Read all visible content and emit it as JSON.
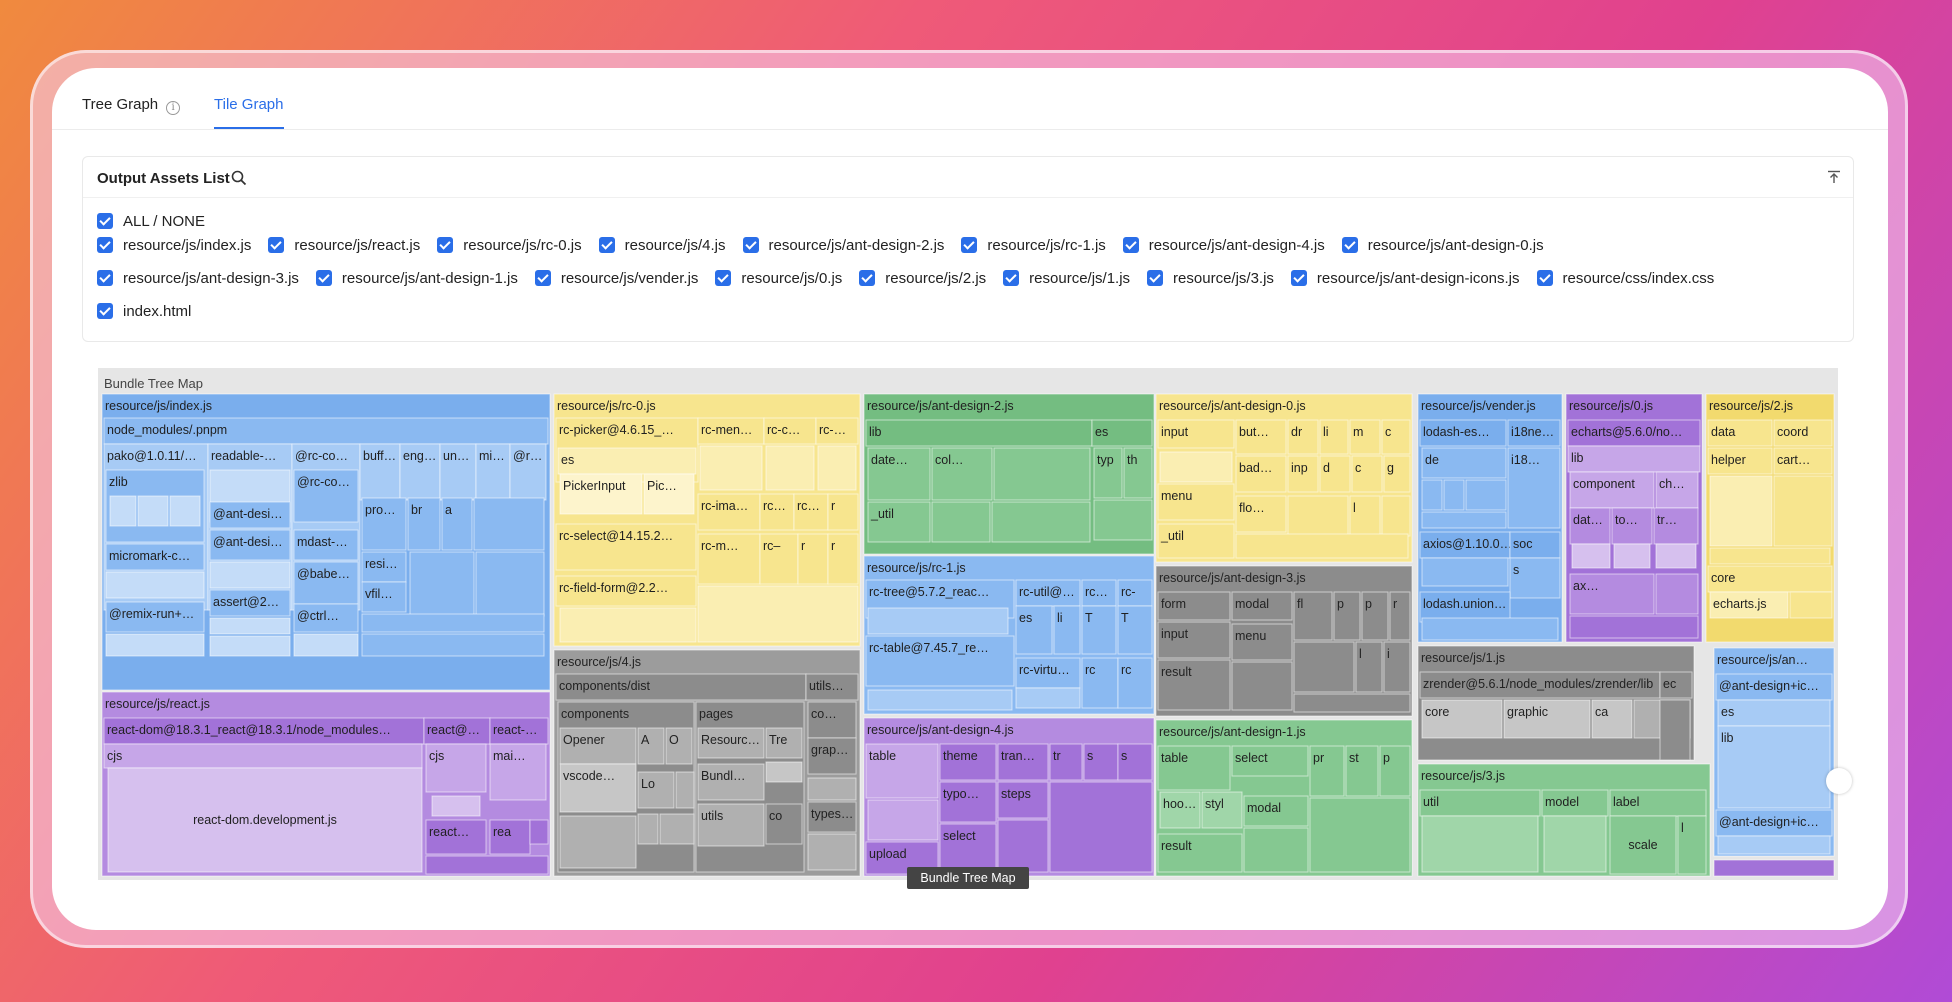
{
  "tabs": [
    {
      "label": "Tree Graph"
    },
    {
      "label": "Tile Graph"
    }
  ],
  "assets": {
    "title": "Output Assets List",
    "all_none": "ALL / NONE",
    "row1": [
      "resource/js/index.js",
      "resource/js/react.js",
      "resource/js/rc-0.js",
      "resource/js/4.js",
      "resource/js/ant-design-2.js",
      "resource/js/rc-1.js",
      "resource/js/ant-design-4.js",
      "resource/js/ant-design-0.js"
    ],
    "row2": [
      "resource/js/ant-design-3.js",
      "resource/js/ant-design-1.js",
      "resource/js/vender.js",
      "resource/js/0.js",
      "resource/js/2.js",
      "resource/js/1.js",
      "resource/js/3.js",
      "resource/js/ant-design-icons.js",
      "resource/css/index.css"
    ],
    "row3": [
      "index.html"
    ]
  },
  "treemap": {
    "title": "Bundle Tree Map",
    "tooltip": "Bundle Tree Map",
    "colors": {
      "blue": "#8ab9f1",
      "yellow": "#f7e58e",
      "green": "#85c891",
      "purple": "#b48be0",
      "gray": "#9c9c9c"
    },
    "labels": {
      "index": "resource/js/index.js",
      "index_nm": "node_modules/.pnpm",
      "pako": "pako@1.0.11/…",
      "readable": "readable-…",
      "rcco1": "@rc-co…",
      "buff": "buff…",
      "eng": "eng…",
      "un": "un…",
      "mi": "mi…",
      "r1": "@r…",
      "zlib": "zlib",
      "antdesi1": "@ant-desi…",
      "rcco2": "@rc-co…",
      "pro": "pro…",
      "br": "br",
      "a": "a",
      "micromark": "micromark-c…",
      "mdast": "mdast-…",
      "resi": "resi…",
      "antdesi2": "@ant-desi…",
      "babe": "@babe…",
      "vfil": "vfil…",
      "remix": "@remix-run+…",
      "assert": "assert@2…",
      "ctrl": "@ctrl…",
      "react": "resource/js/react.js",
      "reactdom": "react-dom@18.3.1_react@18.3.1/node_modules…",
      "react_at": "react@…",
      "react_dash": "react-…",
      "cjs1": "cjs",
      "cjs2": "cjs",
      "mai": "mai…",
      "reactdomdev": "react-dom.development.js",
      "react_dot": "react…",
      "rea": "rea",
      "rc0": "resource/js/rc-0.js",
      "rcpicker": "rc-picker@4.6.15_…",
      "rcmen": "rc-men…",
      "rcc1": "rc-c…",
      "rcdot": "rc-…",
      "es1": "es",
      "pickerinput": "PickerInput",
      "pic": "Pic…",
      "rcima": "rc-ima…",
      "rc1": "rc…",
      "rc2": "rc…",
      "r2": "r",
      "rcselect": "rc-select@14.15.2…",
      "rcm": "rc-m…",
      "rcdash": "rc–",
      "r3": "r",
      "r4": "r",
      "rcfield": "rc-field-form@2.2…",
      "four": "resource/js/4.js",
      "compdist": "components/dist",
      "utils1": "utils…",
      "components": "components",
      "pages": "pages",
      "co1": "co…",
      "opener": "Opener",
      "A": "A",
      "O": "O",
      "resourc": "Resourc…",
      "tre": "Tre",
      "grap": "grap…",
      "vscode": "vscode…",
      "lo": "Lo",
      "bundl": "Bundl…",
      "types": "types…",
      "utils2": "utils",
      "co2": "co",
      "ad2": "resource/js/ant-design-2.js",
      "lib1": "lib",
      "es2": "es",
      "date": "date…",
      "col": "col…",
      "typ": "typ",
      "th": "th",
      "util1": "_util",
      "rc1file": "resource/js/rc-1.js",
      "rctree": "rc-tree@5.7.2_reac…",
      "rcutil": "rc-util@…",
      "rc3": "rc…",
      "rcdash2": "rc-",
      "es3": "es",
      "li1": "li",
      "T1": "T",
      "T2": "T",
      "rctable": "rc-table@7.45.7_re…",
      "rcvirtu": "rc-virtu…",
      "rc4": "rc",
      "rc5": "rc",
      "ad4": "resource/js/ant-design-4.js",
      "table1": "table",
      "theme": "theme",
      "tran": "tran…",
      "tr": "tr",
      "s1": "s",
      "s2": "s",
      "typo": "typo…",
      "steps": "steps",
      "upload": "upload",
      "select1": "select",
      "ad0": "resource/js/ant-design-0.js",
      "input1": "input",
      "but": "but…",
      "dr": "dr",
      "li2": "li",
      "m": "m",
      "c1": "c",
      "menu1": "menu",
      "bad": "bad…",
      "inp": "inp",
      "d": "d",
      "c2": "c",
      "g": "g",
      "flo": "flo…",
      "l1": "l",
      "util2": "_util",
      "ad3": "resource/js/ant-design-3.js",
      "form": "form",
      "modal1": "modal",
      "fl": "fl",
      "p1": "p",
      "p2": "p",
      "r5": "r",
      "input2": "input",
      "menu2": "menu",
      "l2": "l",
      "i": "i",
      "result1": "result",
      "ad1": "resource/js/ant-design-1.js",
      "table2": "table",
      "select2": "select",
      "pr": "pr",
      "st": "st",
      "p3": "p",
      "hoo": "hoo…",
      "styl": "styl",
      "modal2": "modal",
      "result2": "result",
      "vender": "resource/js/vender.js",
      "lodashes": "lodash-es…",
      "i18ne": "i18ne…",
      "de": "de",
      "i18": "i18…",
      "axios": "axios@1.10.0…",
      "soc": "soc",
      "s3": "s",
      "lodashunion": "lodash.union…",
      "zero": "resource/js/0.js",
      "echarts": "echarts@5.6.0/no…",
      "lib2": "lib",
      "component": "component",
      "ch": "ch…",
      "dat": "dat…",
      "to": "to…",
      "tr2": "tr…",
      "ax": "ax…",
      "two": "resource/js/2.js",
      "data": "data",
      "coord": "coord",
      "helper": "helper",
      "cart": "cart…",
      "core1": "core",
      "echartsjs": "echarts.js",
      "one": "resource/js/1.js",
      "zrender": "zrender@5.6.1/node_modules/zrender/lib",
      "ec": "ec",
      "core2": "core",
      "graphic": "graphic",
      "ca": "ca",
      "three": "resource/js/3.js",
      "util3": "util",
      "model": "model",
      "label": "label",
      "scale": "scale",
      "l3": "l",
      "antic": "resource/js/an…",
      "antic1": "@ant-design+ic…",
      "es4": "es",
      "lib3": "lib",
      "antic2": "@ant-design+ic…"
    }
  }
}
